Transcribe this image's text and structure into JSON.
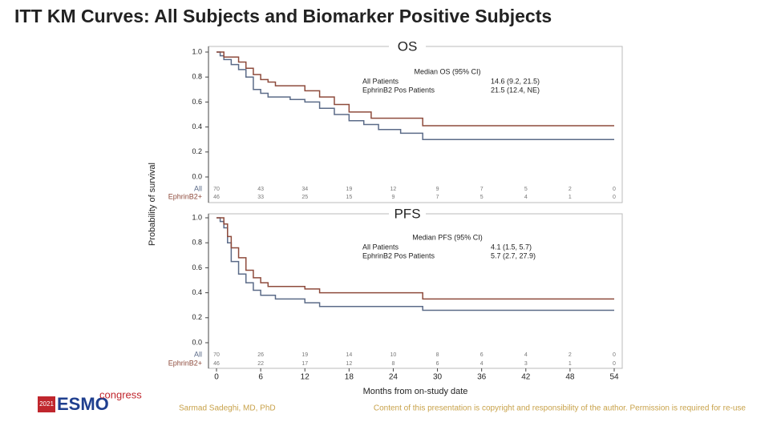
{
  "slide_title": "ITT KM Curves: All Subjects and Biomarker Positive Subjects",
  "chart_data": [
    {
      "type": "line",
      "title": "OS",
      "ylabel": "Probability of survival",
      "xlim": [
        0,
        54
      ],
      "ylim": [
        0,
        1
      ],
      "yticks": [
        {
          "value": 0,
          "label": "0.0"
        },
        0.2,
        0.4,
        0.6,
        0.8,
        {
          "value": 1,
          "label": "1.0"
        }
      ],
      "annotation": {
        "title": "Median OS (95% CI)",
        "rows": [
          [
            "All Patients",
            "14.6 (9.2, 21.5)"
          ],
          [
            "EphrinB2 Pos Patients",
            "21.5 (12.4, NE)"
          ]
        ]
      },
      "series": [
        {
          "name": "All",
          "color": "#5b6b88",
          "x": [
            0,
            0.5,
            1,
            2,
            3,
            4,
            5,
            6,
            7,
            10,
            12,
            14,
            16,
            18,
            20,
            22,
            25,
            28,
            54
          ],
          "values": [
            1,
            0.97,
            0.94,
            0.9,
            0.86,
            0.8,
            0.7,
            0.67,
            0.64,
            0.62,
            0.6,
            0.55,
            0.5,
            0.45,
            0.42,
            0.38,
            0.35,
            0.3,
            0.3
          ]
        },
        {
          "name": "EphrinB2+",
          "color": "#8e4b3c",
          "x": [
            0,
            1,
            3,
            4,
            5,
            6,
            7,
            8,
            12,
            14,
            16,
            18,
            21,
            28,
            54
          ],
          "values": [
            1,
            0.96,
            0.92,
            0.87,
            0.82,
            0.78,
            0.76,
            0.73,
            0.69,
            0.64,
            0.58,
            0.52,
            0.47,
            0.41,
            0.41
          ]
        }
      ],
      "risk_table": [
        [
          70,
          43,
          34,
          19,
          12,
          9,
          7,
          5,
          2,
          0
        ],
        [
          46,
          33,
          25,
          15,
          9,
          7,
          5,
          4,
          1,
          0
        ]
      ]
    },
    {
      "type": "line",
      "title": "PFS",
      "xlabel": "Months from on-study date",
      "xlim": [
        0,
        54
      ],
      "ylim": [
        0,
        1
      ],
      "xticks": [
        0,
        6,
        12,
        18,
        24,
        30,
        36,
        42,
        48,
        54
      ],
      "yticks": [
        {
          "value": 0,
          "label": "0.0"
        },
        0.2,
        0.4,
        0.6,
        0.8,
        {
          "value": 1,
          "label": "1.0"
        }
      ],
      "annotation": {
        "title": "Median PFS (95% CI)",
        "rows": [
          [
            "All Patients",
            "4.1 (1.5, 5.7)"
          ],
          [
            "EphrinB2 Pos Patients",
            "5.7 (2.7, 27.9)"
          ]
        ]
      },
      "series": [
        {
          "name": "All",
          "color": "#5b6b88",
          "x": [
            0,
            0.5,
            1,
            1.5,
            2,
            3,
            4,
            5,
            6,
            8,
            12,
            14,
            28,
            54
          ],
          "values": [
            1,
            0.97,
            0.92,
            0.8,
            0.65,
            0.55,
            0.48,
            0.42,
            0.38,
            0.35,
            0.32,
            0.29,
            0.26,
            0.26
          ]
        },
        {
          "name": "EphrinB2+",
          "color": "#8e4b3c",
          "x": [
            0,
            1,
            1.5,
            2,
            3,
            4,
            5,
            6,
            7,
            12,
            14,
            28,
            54
          ],
          "values": [
            1,
            0.95,
            0.85,
            0.76,
            0.68,
            0.58,
            0.52,
            0.48,
            0.45,
            0.43,
            0.4,
            0.35,
            0.35
          ]
        }
      ],
      "risk_table": [
        [
          70,
          26,
          19,
          14,
          10,
          8,
          6,
          4,
          2,
          0
        ],
        [
          46,
          22,
          17,
          12,
          8,
          6,
          4,
          3,
          1,
          0
        ]
      ]
    }
  ],
  "footer": {
    "logo_year": "2021",
    "logo_name": "ESMO",
    "logo_word": "congress",
    "author": "Sarmad Sadeghi, MD, PhD",
    "notice": "Content of this presentation is copyright and responsibility of the author. Permission is required for re-use"
  }
}
